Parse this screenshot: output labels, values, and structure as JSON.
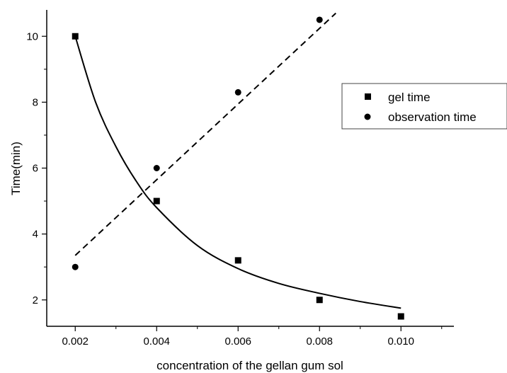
{
  "chart_data": {
    "type": "scatter",
    "xlabel": "concentration of the gellan gum sol",
    "ylabel": "Time(min)",
    "xlim": [
      0.0013,
      0.0113
    ],
    "ylim": [
      1.2,
      10.8
    ],
    "x_ticks": [
      0.002,
      0.004,
      0.006,
      0.008,
      0.01
    ],
    "x_tick_labels": [
      "0.002",
      "0.004",
      "0.006",
      "0.008",
      "0.010"
    ],
    "y_ticks": [
      2,
      4,
      6,
      8,
      10
    ],
    "y_tick_labels": [
      "2",
      "4",
      "6",
      "8",
      "10"
    ],
    "grid": false,
    "legend_position": "top-right",
    "series": [
      {
        "name": "gel time",
        "marker": "square",
        "x": [
          0.002,
          0.004,
          0.006,
          0.008,
          0.01
        ],
        "values": [
          10.0,
          5.0,
          3.2,
          2.0,
          1.5
        ],
        "fit": "solid curve",
        "fit_x": [
          0.002,
          0.0025,
          0.003,
          0.0035,
          0.004,
          0.005,
          0.006,
          0.007,
          0.008,
          0.009,
          0.01
        ],
        "fit_values": [
          10.0,
          8.0,
          6.65,
          5.6,
          4.8,
          3.65,
          2.95,
          2.5,
          2.2,
          1.95,
          1.75
        ]
      },
      {
        "name": "observation time",
        "marker": "circle",
        "x": [
          0.002,
          0.004,
          0.006,
          0.008
        ],
        "values": [
          3.0,
          6.0,
          8.3,
          10.5
        ],
        "fit": "dashed line",
        "fit_x": [
          0.002,
          0.0084
        ],
        "fit_values": [
          3.35,
          10.7
        ]
      }
    ]
  }
}
